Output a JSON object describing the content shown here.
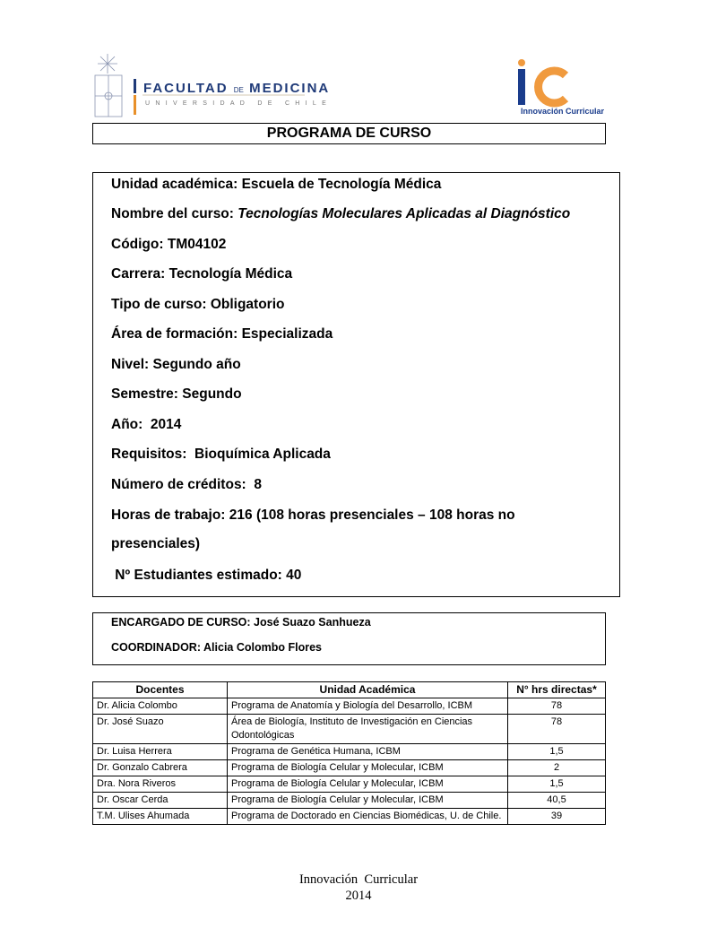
{
  "header": {
    "logo_left": {
      "line1_a": "FACULTAD",
      "line1_b": "DE",
      "line1_c": "MEDICINA",
      "line2": "UNIVERSIDAD DE CHILE",
      "colors": {
        "blue": "#1f3a78",
        "orange": "#e8902a"
      }
    },
    "logo_right": {
      "mark": "iC",
      "caption": "Innovación Curricular",
      "colors": {
        "blue": "#1a3c8c",
        "orange": "#f09a3e"
      }
    }
  },
  "title": "PROGRAMA DE CURSO",
  "info": [
    {
      "label": "Unidad académica:",
      "value": "Escuela de Tecnología Médica"
    },
    {
      "label": "Nombre del curso:",
      "value": "Tecnologías Moleculares Aplicadas al Diagnóstico",
      "italic": true
    },
    {
      "label": "Código:",
      "value": "TM04102"
    },
    {
      "label": "Carrera:",
      "value": "Tecnología Médica"
    },
    {
      "label": "Tipo de curso:",
      "value": "Obligatorio"
    },
    {
      "label": "Área de formación:",
      "value": "Especializada"
    },
    {
      "label": "Nivel:",
      "value": "Segundo año"
    },
    {
      "label": "Semestre:",
      "value": "Segundo"
    },
    {
      "label": "Año:",
      "value": " 2014"
    },
    {
      "label": "Requisitos:",
      "value": " Bioquímica Aplicada"
    },
    {
      "label": "Número de créditos:",
      "value": " 8"
    },
    {
      "label": "Horas de trabajo:",
      "value": "216 (108 horas presenciales – 108 horas no"
    },
    {
      "label": "",
      "value": "presenciales)"
    },
    {
      "label": " Nº Estudiantes estimado:",
      "value": "40"
    }
  ],
  "encargado": {
    "label": "ENCARGADO DE CURSO:",
    "value": "José Suazo Sanhueza"
  },
  "coordinador": {
    "label": "COORDINADOR:",
    "value": "Alicia Colombo Flores"
  },
  "table": {
    "headers": [
      "Docentes",
      "Unidad Académica",
      "N° hrs directas*"
    ],
    "rows": [
      [
        "Dr. Alicia Colombo",
        "Programa de Anatomía y Biología del Desarrollo, ICBM",
        "78"
      ],
      [
        "Dr. José Suazo",
        "Área de Biología, Instituto de Investigación en Ciencias Odontológicas",
        "78"
      ],
      [
        "Dr. Luisa Herrera",
        "Programa de Genética Humana, ICBM",
        "1,5"
      ],
      [
        "Dr. Gonzalo Cabrera",
        "Programa de Biología Celular y Molecular, ICBM",
        "2"
      ],
      [
        "Dra. Nora Riveros",
        "Programa de Biología Celular y Molecular, ICBM",
        "1,5"
      ],
      [
        "Dr. Oscar Cerda",
        "Programa de Biología Celular y Molecular, ICBM",
        "40,5"
      ],
      [
        "T.M. Ulises Ahumada",
        "Programa de Doctorado en Ciencias Biomédicas, U. de Chile.",
        "39"
      ]
    ]
  },
  "footer": {
    "line1": "Innovación  Curricular",
    "line2": "2014"
  }
}
